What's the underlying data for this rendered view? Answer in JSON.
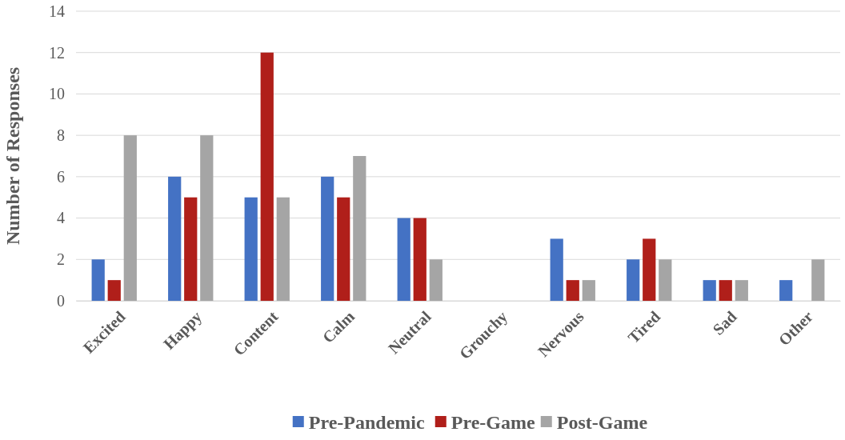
{
  "chart_data": {
    "type": "bar",
    "ylabel": "Number of Responses",
    "categories": [
      "Excited",
      "Happy",
      "Content",
      "Calm",
      "Neutral",
      "Grouchy",
      "Nervous",
      "Tired",
      "Sad",
      "Other"
    ],
    "series": [
      {
        "name": "Pre-Pandemic",
        "color": "#4472c4",
        "values": [
          2,
          6,
          5,
          6,
          4,
          0,
          3,
          2,
          1,
          1
        ]
      },
      {
        "name": "Pre-Game",
        "color": "#b01f1a",
        "values": [
          1,
          5,
          12,
          5,
          4,
          0,
          1,
          3,
          1,
          0
        ]
      },
      {
        "name": "Post-Game",
        "color": "#a5a5a5",
        "values": [
          8,
          8,
          5,
          7,
          2,
          0,
          1,
          2,
          1,
          2
        ]
      }
    ],
    "ylim": [
      0,
      14
    ],
    "yticks": [
      0,
      2,
      4,
      6,
      8,
      10,
      12,
      14
    ],
    "grid": "y",
    "legend": "bottom"
  }
}
